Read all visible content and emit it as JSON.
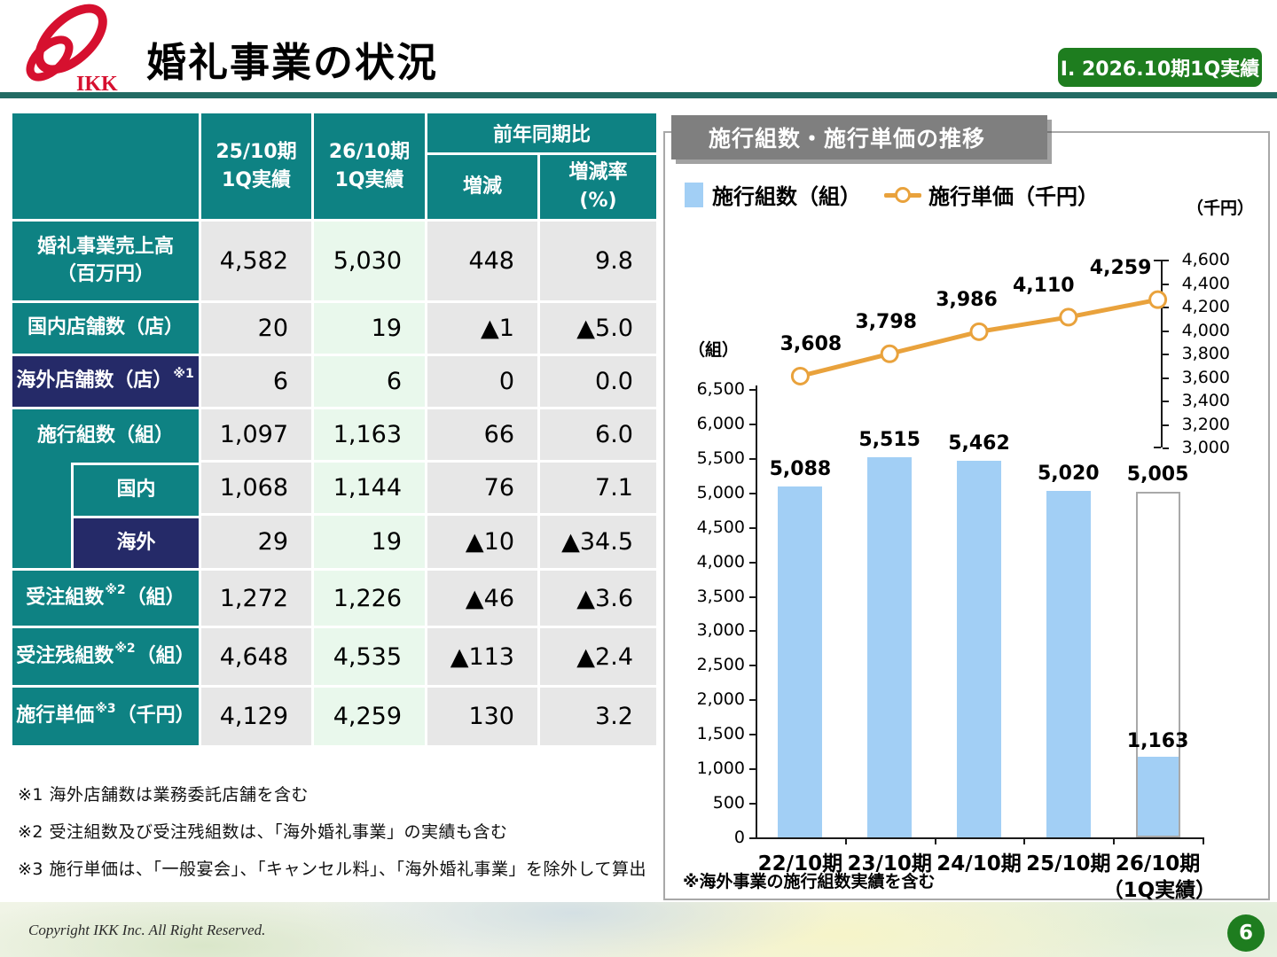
{
  "header": {
    "logo_text": "IKK",
    "title": "婚礼事業の状況",
    "badge": "Ⅰ. 2026.10期1Q実績"
  },
  "colors": {
    "teal": "#0e8283",
    "navy": "#252a68",
    "badge_green": "#1e7d1f",
    "rule_teal": "#226b63",
    "bar_blue": "#a2cff5",
    "line_orange": "#e9a23c",
    "cell_gray": "#e7e7e7",
    "cell_green": "#e9f8ec",
    "titlebox_gray": "#7f7f7f"
  },
  "table": {
    "group_header": "前年同期比",
    "col_headers": [
      "25/10期\n1Q実績",
      "26/10期\n1Q実績",
      "増減",
      "増減率\n(%)"
    ],
    "rows": [
      {
        "label": "婚礼事業売上高\n（百万円）",
        "style": "teal",
        "values": [
          "4,582",
          "5,030",
          "448",
          "9.8"
        ]
      },
      {
        "label": "国内店舗数（店）",
        "style": "teal",
        "values": [
          "20",
          "19",
          "▲1",
          "▲5.0"
        ]
      },
      {
        "label": "海外店舗数（店）",
        "sup": "※1",
        "post": "",
        "style": "navy",
        "values": [
          "6",
          "6",
          "0",
          "0.0"
        ]
      },
      {
        "label": "施行組数（組）",
        "style": "teal",
        "group_start": true,
        "values": [
          "1,097",
          "1,163",
          "66",
          "6.0"
        ]
      },
      {
        "label": "国内",
        "style": "teal",
        "indent": true,
        "values": [
          "1,068",
          "1,144",
          "76",
          "7.1"
        ]
      },
      {
        "label": "海外",
        "style": "navy",
        "indent": true,
        "values": [
          "29",
          "19",
          "▲10",
          "▲34.5"
        ]
      },
      {
        "label": "受注組数",
        "sup": "※2",
        "post": "（組）",
        "style": "teal",
        "values": [
          "1,272",
          "1,226",
          "▲46",
          "▲3.6"
        ]
      },
      {
        "label": "受注残組数",
        "sup": "※2",
        "post": "（組）",
        "style": "teal",
        "values": [
          "4,648",
          "4,535",
          "▲113",
          "▲2.4"
        ]
      },
      {
        "label": "施行単価",
        "sup": "※3",
        "post": "（千円）",
        "style": "teal",
        "values": [
          "4,129",
          "4,259",
          "130",
          "3.2"
        ]
      }
    ]
  },
  "footnotes": [
    "※1 海外店舗数は業務委託店舗を含む",
    "※2 受注組数及び受注残組数は、「海外婚礼事業」の実績も含む",
    "※3 施行単価は、「一般宴会」、「キャンセル料」、「海外婚礼事業」を除外して算出"
  ],
  "chart_data": {
    "type": "bar+line",
    "title": "施行組数・施行単価の推移",
    "categories": [
      "22/10期",
      "23/10期",
      "24/10期",
      "25/10期",
      "26/10期"
    ],
    "last_category_sublabel": "（1Q実績）",
    "bars": {
      "name": "施行組数（組）",
      "axis": "left",
      "color": "#a2cff5",
      "values": [
        5088,
        5515,
        5462,
        5020,
        1163
      ],
      "labels": [
        "5,088",
        "5,515",
        "5,462",
        "5,020",
        "1,163"
      ],
      "outline_overlay": {
        "index": 4,
        "value": 5005,
        "label": "5,005"
      }
    },
    "line": {
      "name": "施行単価（千円）",
      "axis": "right",
      "color": "#e9a23c",
      "values": [
        3608,
        3798,
        3986,
        4110,
        4259
      ],
      "labels": [
        "3,608",
        "3,798",
        "3,986",
        "4,110",
        "4,259"
      ]
    },
    "left_axis": {
      "unit": "（組）",
      "min": 0,
      "max": 6500,
      "step": 500
    },
    "right_axis": {
      "unit": "（千円）",
      "min": 3000,
      "max": 4600,
      "step": 200
    },
    "note": "※海外事業の施行組数実績を含む",
    "grid": false,
    "legend_position": "top-left"
  },
  "footer": {
    "copyright": "Copyright IKK Inc. All Right Reserved.",
    "page": "6"
  }
}
